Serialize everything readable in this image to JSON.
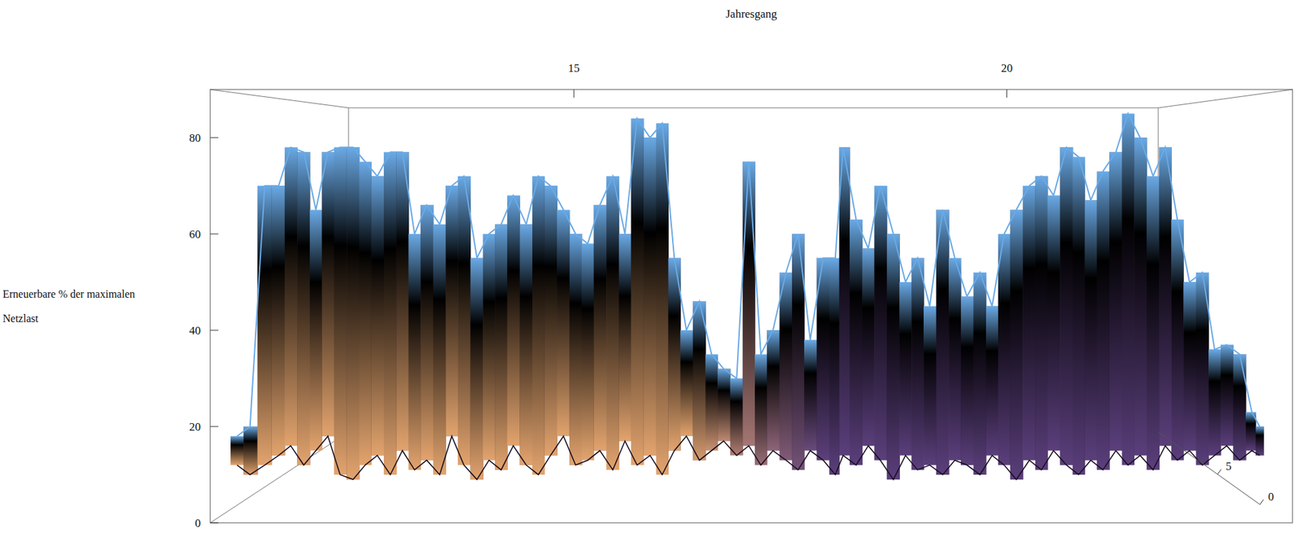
{
  "chart_data": {
    "type": "surface",
    "xlabel": "Jahresgang",
    "ylabel": "Erneuerbare % der maximalen Netzlast",
    "x": [
      11.11,
      11.26,
      11.43,
      11.59,
      11.73,
      11.88,
      12.02,
      12.16,
      12.3,
      12.45,
      12.59,
      12.73,
      12.88,
      13.02,
      13.16,
      13.3,
      13.45,
      13.59,
      13.73,
      13.88,
      14.02,
      14.16,
      14.3,
      14.45,
      14.59,
      14.73,
      14.88,
      15.02,
      15.16,
      15.3,
      15.45,
      15.59,
      15.73,
      15.88,
      16.02,
      16.16,
      16.3,
      16.45,
      16.59,
      16.73,
      16.88,
      17.02,
      17.16,
      17.3,
      17.45,
      17.59,
      17.73,
      17.88,
      18.02,
      18.11,
      18.26,
      18.4,
      18.54,
      18.69,
      18.83,
      18.97,
      19.11,
      19.26,
      19.4,
      19.54,
      19.69,
      19.83,
      19.97,
      20.11,
      20.26,
      20.4,
      20.54,
      20.69,
      20.83,
      20.97,
      21.11,
      21.26,
      21.4,
      21.54,
      21.69,
      21.83,
      21.97,
      22.11,
      22.26,
      22.4,
      22.54,
      22.69,
      22.83,
      22.92
    ],
    "series": [
      {
        "color": "#6aaae6",
        "values": [
          18,
          20,
          70,
          70,
          78,
          77,
          65,
          77,
          78,
          78,
          75,
          72,
          77,
          77,
          60,
          66,
          62,
          70,
          72,
          55,
          60,
          62,
          68,
          62,
          72,
          70,
          65,
          60,
          58,
          66,
          72,
          60,
          84,
          80,
          83,
          55,
          40,
          46,
          35,
          32,
          30,
          75,
          35,
          40,
          52,
          60,
          38,
          55,
          55,
          78,
          63,
          57,
          70,
          60,
          50,
          55,
          45,
          65,
          55,
          47,
          52,
          45,
          60,
          65,
          70,
          72,
          68,
          78,
          76,
          67,
          73,
          77,
          85,
          80,
          72,
          78,
          63,
          50,
          52,
          36,
          37,
          35,
          23,
          20
        ]
      },
      {
        "color": "#1a1020",
        "values": [
          12,
          10,
          12,
          14,
          16,
          12,
          15,
          18,
          10,
          9,
          12,
          14,
          10,
          15,
          11,
          13,
          10,
          18,
          12,
          9,
          13,
          11,
          16,
          12,
          10,
          14,
          18,
          12,
          13,
          15,
          11,
          17,
          12,
          14,
          10,
          15,
          18,
          13,
          15,
          17,
          14,
          16,
          12,
          15,
          13,
          11,
          15,
          13,
          10,
          14,
          12,
          16,
          13,
          9,
          14,
          11,
          12,
          10,
          13,
          12,
          10,
          14,
          12,
          9,
          13,
          11,
          15,
          12,
          10,
          13,
          11,
          15,
          12,
          14,
          11,
          16,
          13,
          15,
          12,
          14,
          16,
          13,
          15,
          14
        ]
      }
    ],
    "xlim": [
      10.8,
      23.3
    ],
    "xticks": [
      15,
      20
    ],
    "ylim": [
      0,
      90
    ],
    "yticks": [
      0,
      20,
      40,
      60,
      80
    ],
    "zlim": [
      0,
      12
    ],
    "zticks": [
      0,
      5
    ],
    "grid": false
  }
}
